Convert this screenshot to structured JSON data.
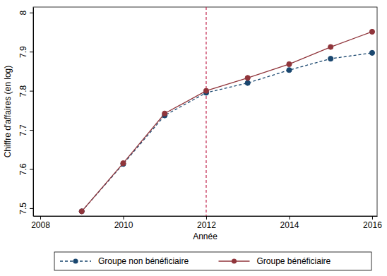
{
  "chart_data": {
    "type": "line",
    "x_label": "Année",
    "y_label": "Chiffre d'affaires (en log)",
    "x": [
      2009,
      2010,
      2011,
      2012,
      2013,
      2014,
      2015,
      2016
    ],
    "series": [
      {
        "name": "Groupe non bénéficiaire",
        "color": "#1a476f",
        "line_style": "dashed",
        "marker": "circle",
        "values": [
          7.492,
          7.613,
          7.737,
          7.795,
          7.82,
          7.853,
          7.882,
          7.897
        ]
      },
      {
        "name": "Groupe bénéficiaire",
        "color": "#90353b",
        "line_style": "solid",
        "marker": "circle",
        "values": [
          7.492,
          7.615,
          7.742,
          7.8,
          7.833,
          7.868,
          7.912,
          7.951
        ]
      }
    ],
    "reference_lines": [
      {
        "x": 2012,
        "color": "#c0204a",
        "line_style": "dashed"
      }
    ],
    "xlim": [
      2007.83,
      2016.12
    ],
    "xticks": [
      2008,
      2010,
      2012,
      2014,
      2016
    ],
    "ylim": [
      7.48,
      8.014
    ],
    "yticks": [
      7.5,
      7.6,
      7.7,
      7.8,
      7.9,
      8
    ],
    "grid": false,
    "legend": "bottom"
  }
}
